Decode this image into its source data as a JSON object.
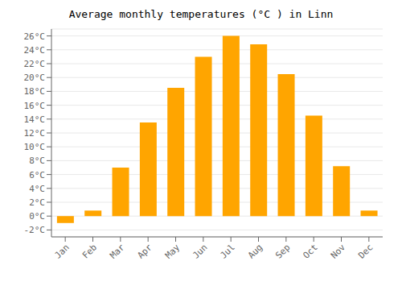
{
  "chart_data": {
    "type": "bar",
    "title": "Average monthly temperatures (°C ) in Linn",
    "categories": [
      "Jan",
      "Feb",
      "Mar",
      "Apr",
      "May",
      "Jun",
      "Jul",
      "Aug",
      "Sep",
      "Oct",
      "Nov",
      "Dec"
    ],
    "values": [
      -1.0,
      0.8,
      7.0,
      13.5,
      18.5,
      23.0,
      26.0,
      24.8,
      20.5,
      14.5,
      7.2,
      0.8
    ],
    "color": "#FFA500",
    "ylim": [
      -3,
      27
    ],
    "yticks": [
      {
        "value": -2,
        "label": "-2°C"
      },
      {
        "value": 0,
        "label": "0°C"
      },
      {
        "value": 2,
        "label": "2°C"
      },
      {
        "value": 4,
        "label": "4°C"
      },
      {
        "value": 6,
        "label": "6°C"
      },
      {
        "value": 8,
        "label": "8°C"
      },
      {
        "value": 10,
        "label": "10°C"
      },
      {
        "value": 12,
        "label": "12°C"
      },
      {
        "value": 14,
        "label": "14°C"
      },
      {
        "value": 16,
        "label": "16°C"
      },
      {
        "value": 18,
        "label": "18°C"
      },
      {
        "value": 20,
        "label": "20°C"
      },
      {
        "value": 22,
        "label": "22°C"
      },
      {
        "value": 24,
        "label": "24°C"
      },
      {
        "value": 26,
        "label": "26°C"
      }
    ],
    "grid": true
  }
}
